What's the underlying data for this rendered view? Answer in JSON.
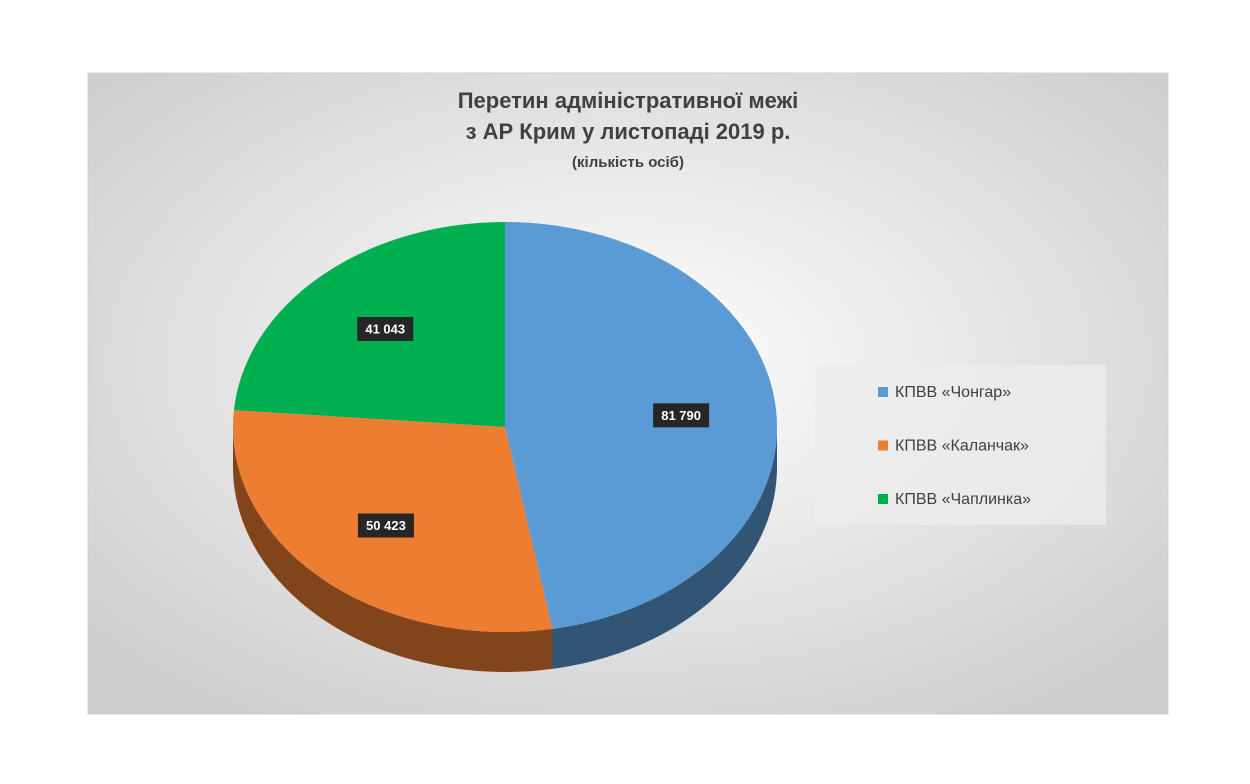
{
  "chart_data": {
    "type": "pie",
    "title": [
      "Перетин адміністративної межі",
      "з АР Крим у листопаді 2019 р."
    ],
    "subtitle": "(кількість осіб)",
    "categories": [
      "КПВВ «Чонгар»",
      "КПВВ «Каланчак»",
      "КПВВ «Чаплинка»"
    ],
    "values": [
      81790,
      50423,
      41043
    ],
    "value_labels": [
      "81 790",
      "50 423",
      "41 043"
    ],
    "colors": [
      "#5b9bd5",
      "#ed7d31",
      "#00b050"
    ],
    "legend": "right"
  }
}
